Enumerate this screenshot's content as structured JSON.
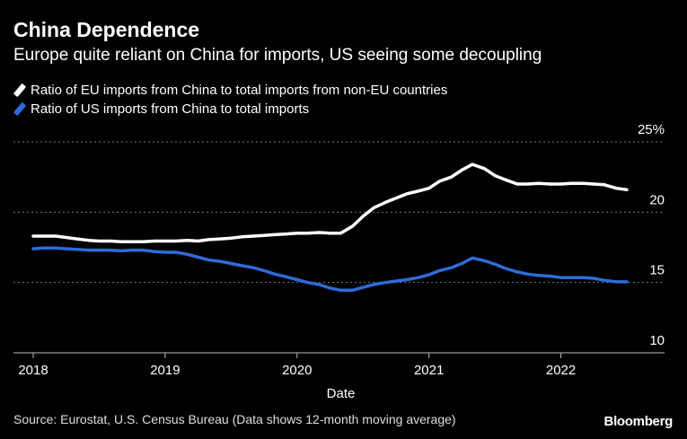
{
  "title": "China Dependence",
  "subtitle": "Europe quite reliant on China for imports, US seeing some decoupling",
  "source": "Source: Eurostat, U.S. Census Bureau (Data shows 12-month moving average)",
  "brand": "Bloomberg",
  "colors": {
    "eu": "#ffffff",
    "us": "#2f6bd8",
    "grid": "#777777",
    "axis": "#bbbbbb"
  },
  "chart_data": {
    "type": "line",
    "xlabel": "Date",
    "ylabel": "",
    "xlim": [
      2018,
      2022.5
    ],
    "ylim": [
      10,
      25
    ],
    "y_ticks": [
      {
        "value": 25,
        "label": "25%"
      },
      {
        "value": 20,
        "label": "20"
      },
      {
        "value": 15,
        "label": "15"
      },
      {
        "value": 10,
        "label": "10"
      }
    ],
    "x_ticks": [
      {
        "value": 2018,
        "label": "2018"
      },
      {
        "value": 2019,
        "label": "2019"
      },
      {
        "value": 2020,
        "label": "2020"
      },
      {
        "value": 2021,
        "label": "2021"
      },
      {
        "value": 2022,
        "label": "2022"
      }
    ],
    "grid": true,
    "legend_position": "top-left",
    "series": [
      {
        "name": "Ratio of EU imports from China to total imports from non-EU countries",
        "color": "#ffffff",
        "points": [
          [
            2018.0,
            18.3
          ],
          [
            2018.08,
            18.3
          ],
          [
            2018.17,
            18.3
          ],
          [
            2018.25,
            18.2
          ],
          [
            2018.33,
            18.1
          ],
          [
            2018.42,
            18.0
          ],
          [
            2018.5,
            17.95
          ],
          [
            2018.58,
            17.95
          ],
          [
            2018.67,
            17.9
          ],
          [
            2018.75,
            17.9
          ],
          [
            2018.83,
            17.9
          ],
          [
            2018.92,
            17.95
          ],
          [
            2019.0,
            17.95
          ],
          [
            2019.08,
            17.95
          ],
          [
            2019.17,
            18.0
          ],
          [
            2019.25,
            17.95
          ],
          [
            2019.33,
            18.05
          ],
          [
            2019.42,
            18.1
          ],
          [
            2019.5,
            18.15
          ],
          [
            2019.58,
            18.25
          ],
          [
            2019.67,
            18.3
          ],
          [
            2019.75,
            18.35
          ],
          [
            2019.83,
            18.4
          ],
          [
            2019.92,
            18.45
          ],
          [
            2020.0,
            18.5
          ],
          [
            2020.08,
            18.5
          ],
          [
            2020.17,
            18.55
          ],
          [
            2020.25,
            18.5
          ],
          [
            2020.33,
            18.5
          ],
          [
            2020.42,
            19.0
          ],
          [
            2020.5,
            19.7
          ],
          [
            2020.58,
            20.3
          ],
          [
            2020.67,
            20.7
          ],
          [
            2020.75,
            21.0
          ],
          [
            2020.83,
            21.3
          ],
          [
            2020.92,
            21.5
          ],
          [
            2021.0,
            21.7
          ],
          [
            2021.08,
            22.2
          ],
          [
            2021.17,
            22.5
          ],
          [
            2021.25,
            23.0
          ],
          [
            2021.33,
            23.4
          ],
          [
            2021.42,
            23.1
          ],
          [
            2021.5,
            22.6
          ],
          [
            2021.58,
            22.3
          ],
          [
            2021.67,
            22.0
          ],
          [
            2021.75,
            22.0
          ],
          [
            2021.83,
            22.05
          ],
          [
            2021.92,
            22.0
          ],
          [
            2022.0,
            22.0
          ],
          [
            2022.08,
            22.05
          ],
          [
            2022.17,
            22.05
          ],
          [
            2022.25,
            22.0
          ],
          [
            2022.33,
            21.95
          ],
          [
            2022.42,
            21.7
          ],
          [
            2022.5,
            21.6
          ]
        ]
      },
      {
        "name": "Ratio of US imports from China to total imports",
        "color": "#2f6bd8",
        "points": [
          [
            2018.0,
            17.4
          ],
          [
            2018.08,
            17.45
          ],
          [
            2018.17,
            17.45
          ],
          [
            2018.25,
            17.4
          ],
          [
            2018.33,
            17.35
          ],
          [
            2018.42,
            17.3
          ],
          [
            2018.5,
            17.3
          ],
          [
            2018.58,
            17.3
          ],
          [
            2018.67,
            17.25
          ],
          [
            2018.75,
            17.3
          ],
          [
            2018.83,
            17.3
          ],
          [
            2018.92,
            17.2
          ],
          [
            2019.0,
            17.15
          ],
          [
            2019.08,
            17.15
          ],
          [
            2019.17,
            17.0
          ],
          [
            2019.25,
            16.8
          ],
          [
            2019.33,
            16.6
          ],
          [
            2019.42,
            16.5
          ],
          [
            2019.5,
            16.35
          ],
          [
            2019.58,
            16.2
          ],
          [
            2019.67,
            16.05
          ],
          [
            2019.75,
            15.85
          ],
          [
            2019.83,
            15.6
          ],
          [
            2019.92,
            15.4
          ],
          [
            2020.0,
            15.2
          ],
          [
            2020.08,
            15.0
          ],
          [
            2020.17,
            14.85
          ],
          [
            2020.25,
            14.6
          ],
          [
            2020.33,
            14.45
          ],
          [
            2020.42,
            14.45
          ],
          [
            2020.5,
            14.65
          ],
          [
            2020.58,
            14.85
          ],
          [
            2020.67,
            15.0
          ],
          [
            2020.75,
            15.1
          ],
          [
            2020.83,
            15.2
          ],
          [
            2020.92,
            15.35
          ],
          [
            2021.0,
            15.55
          ],
          [
            2021.08,
            15.85
          ],
          [
            2021.17,
            16.05
          ],
          [
            2021.25,
            16.35
          ],
          [
            2021.33,
            16.75
          ],
          [
            2021.42,
            16.55
          ],
          [
            2021.5,
            16.3
          ],
          [
            2021.58,
            16.0
          ],
          [
            2021.67,
            15.75
          ],
          [
            2021.75,
            15.6
          ],
          [
            2021.83,
            15.5
          ],
          [
            2021.92,
            15.45
          ],
          [
            2022.0,
            15.35
          ],
          [
            2022.08,
            15.35
          ],
          [
            2022.17,
            15.35
          ],
          [
            2022.25,
            15.3
          ],
          [
            2022.33,
            15.15
          ],
          [
            2022.42,
            15.05
          ],
          [
            2022.5,
            15.05
          ]
        ]
      }
    ]
  }
}
